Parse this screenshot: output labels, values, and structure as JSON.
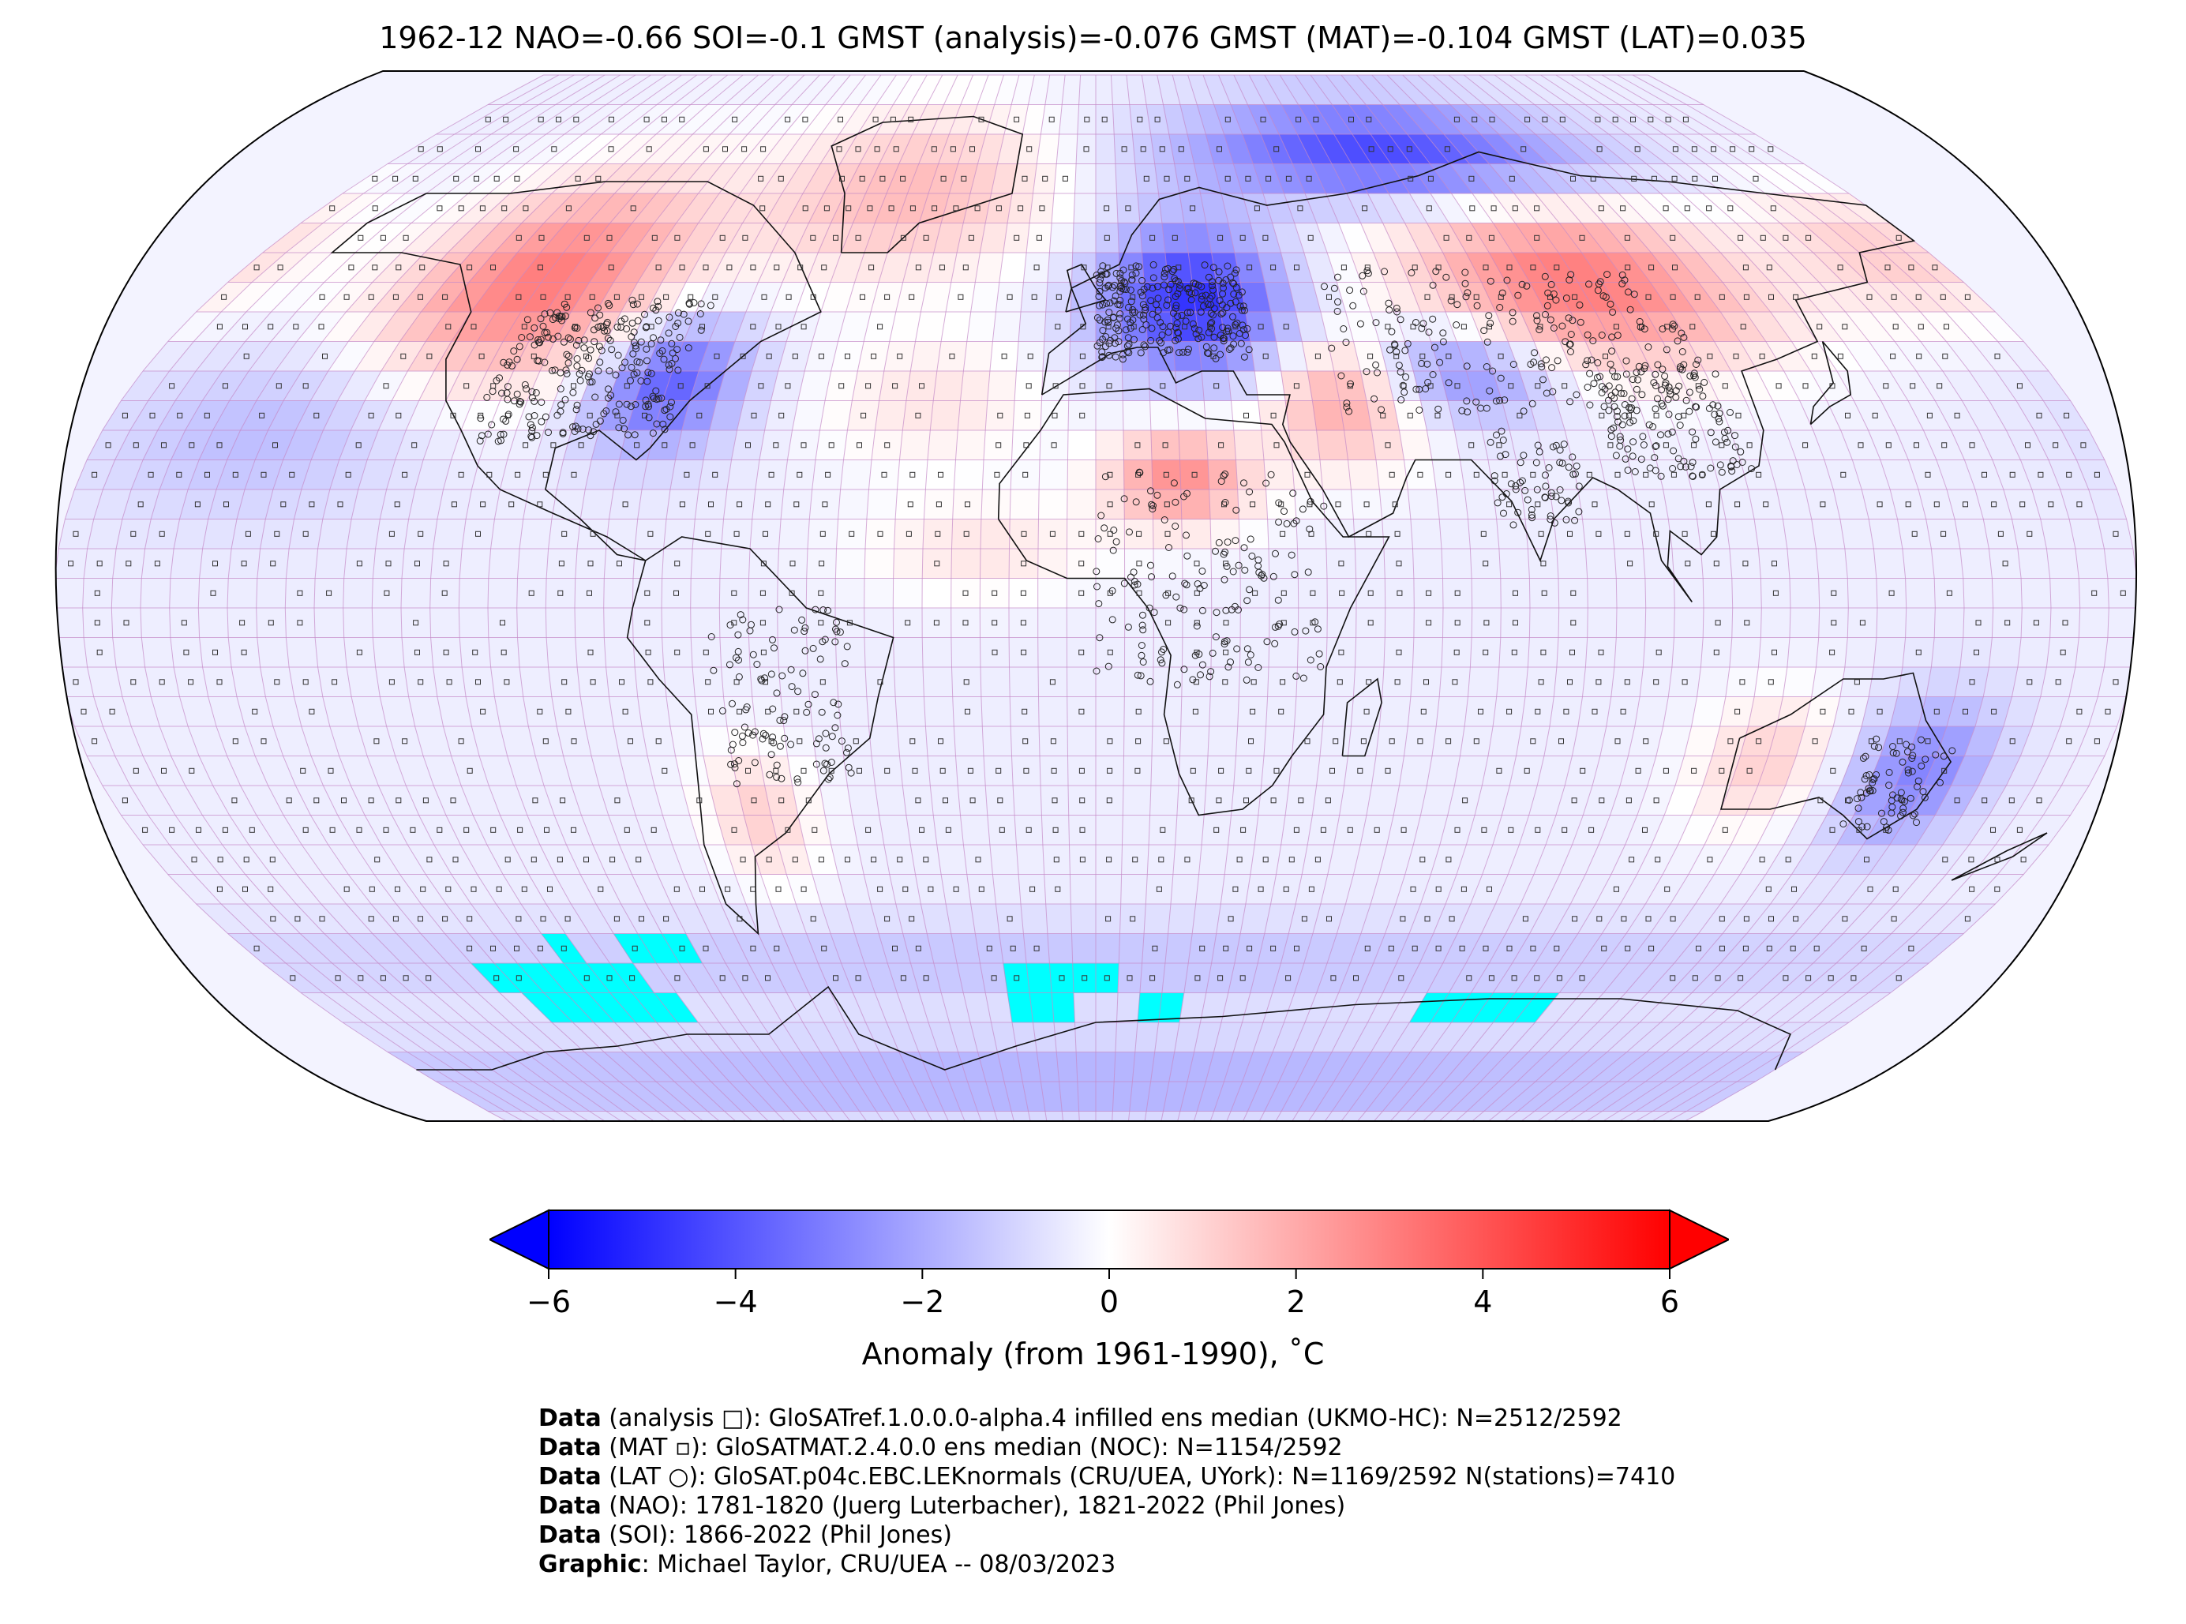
{
  "title": "1962-12 NAO=-0.66 SOI=-0.1 GMST (analysis)=-0.076 GMST (MAT)=-0.104 GMST (LAT)=0.035",
  "colors": {
    "cold": "#0000ff",
    "neutral": "#ffffff",
    "warm": "#ff0000",
    "missing": "#00ffff",
    "gridline": "#c58ac8"
  },
  "colorbar": {
    "range": [
      -6,
      6
    ],
    "ticks": [
      "−6",
      "−4",
      "−2",
      "0",
      "2",
      "4",
      "6"
    ],
    "tick_values": [
      -6,
      -4,
      -2,
      0,
      2,
      4,
      6
    ],
    "label": "Anomaly (from 1961-1990), ˚C",
    "extend": "both"
  },
  "map": {
    "projection": "Robinson",
    "grid_resolution_deg": 5,
    "anomaly_regions": [
      {
        "region": "North America west / Canada",
        "anomaly": 3.5
      },
      {
        "region": "Greenland / Arctic Atlantic",
        "anomaly": 2.0
      },
      {
        "region": "Eastern United States",
        "anomaly": -3.5
      },
      {
        "region": "Europe",
        "anomaly": -4.5
      },
      {
        "region": "Arctic Siberia",
        "anomaly": -4.0
      },
      {
        "region": "Central Siberia / Mongolia",
        "anomaly": 3.5
      },
      {
        "region": "Middle East",
        "anomaly": 2.5
      },
      {
        "region": "Sahara",
        "anomaly": 3.0
      },
      {
        "region": "Central Asia",
        "anomaly": -2.5
      },
      {
        "region": "Eastern Australia",
        "anomaly": -2.5
      },
      {
        "region": "Western Australia",
        "anomaly": 1.5
      },
      {
        "region": "Southern South America",
        "anomaly": 1.5
      },
      {
        "region": "Southern Ocean",
        "anomaly": -1.0
      },
      {
        "region": "Antarctica",
        "anomaly": -1.5
      }
    ]
  },
  "credits": [
    {
      "key": "Data",
      "text": " (analysis □): GloSATref.1.0.0.0-alpha.4 infilled ens median (UKMO-HC): N=2512/2592"
    },
    {
      "key": "Data",
      "text": " (MAT ▫): GloSATMAT.2.4.0.0 ens median (NOC): N=1154/2592"
    },
    {
      "key": "Data",
      "text": " (LAT ○): GloSAT.p04c.EBC.LEKnormals (CRU/UEA, UYork): N=1169/2592 N(stations)=7410"
    },
    {
      "key": "Data",
      "text": " (NAO): 1781-1820 (Juerg Luterbacher), 1821-2022 (Phil Jones)"
    },
    {
      "key": "Data",
      "text": " (SOI): 1866-2022 (Phil Jones)"
    },
    {
      "key": "Graphic",
      "text": ": Michael Taylor, CRU/UEA -- 08/03/2023"
    }
  ]
}
